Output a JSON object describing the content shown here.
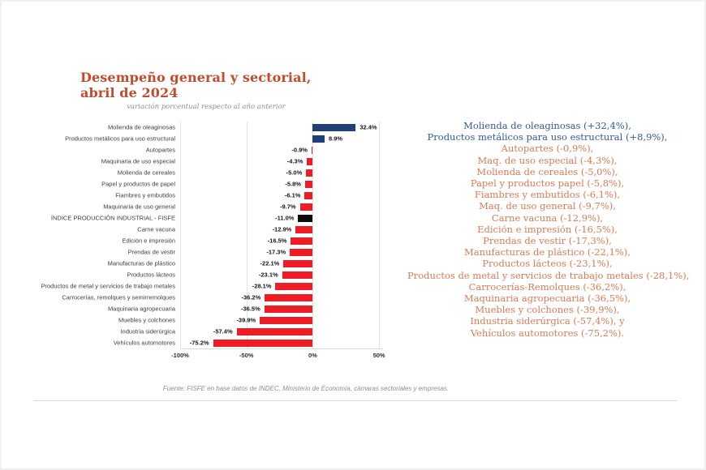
{
  "page": {
    "title": "Desempeño general y sectorial, abril de 2024",
    "subtitle": "variación porcentual respecto al año anterior",
    "source": "Fuente: FISFE en base datos de INDEC, Ministerio de Economía, cámaras sectoriales y empresas."
  },
  "chart_data": {
    "type": "bar",
    "orientation": "horizontal",
    "title": "Desempeño general y sectorial, abril de 2024",
    "subtitle": "variación porcentual respecto al año anterior",
    "categories": [
      "Molienda de oleaginosas",
      "Productos metálicos para uso estructural",
      "Autopartes",
      "Maquinaria de uso especial",
      "Molienda de cereales",
      "Papel y productos de papel",
      "Fiambres y embutidos",
      "Maquinaria de uso general",
      "ÍNDICE PRODUCCIÓN INDUSTRIAL - FISFE",
      "Carne vacuna",
      "Edición e impresión",
      "Prendas de vestir",
      "Manufacturas de plástico",
      "Productos lácteos",
      "Productos de metal y servicios de trabajo metales",
      "Carrocerías, remolques y semirremolques",
      "Maquinaria agropecuaria",
      "Muebles y colchones",
      "Industria siderúrgica",
      "Vehículos automotores"
    ],
    "values": [
      32.4,
      8.9,
      -0.9,
      -4.3,
      -5.0,
      -5.8,
      -6.1,
      -9.7,
      -11.0,
      -12.9,
      -16.5,
      -17.3,
      -22.1,
      -23.1,
      -28.1,
      -36.2,
      -36.5,
      -39.9,
      -57.4,
      -75.2
    ],
    "value_labels": [
      "32.4%",
      "8.9%",
      "-0.9%",
      "-4.3%",
      "-5.0%",
      "-5.8%",
      "-6.1%",
      "-9.7%",
      "-11.0%",
      "-12.9%",
      "-16.5%",
      "-17.3%",
      "-22.1%",
      "-23.1%",
      "-28.1%",
      "-36.2%",
      "-36.5%",
      "-39.9%",
      "-57.4%",
      "-75.2%"
    ],
    "highlight_index": 8,
    "x_ticks": [
      "-100%",
      "-50%",
      "0%",
      "50%"
    ],
    "x_tick_values": [
      -100,
      -50,
      0,
      50
    ],
    "xlim": [
      -100,
      53
    ],
    "grid": true,
    "legend": "none",
    "colors": {
      "positive": "#1f4077",
      "negative": "#ee1c25",
      "index": "#0b0b0b"
    }
  },
  "summary": {
    "colors": {
      "blue": "#33589c",
      "orange": "#d97a55"
    },
    "lines": [
      {
        "text": "Molienda de oleaginosas (+32,4%),",
        "tone": "blue"
      },
      {
        "text": "Productos metálicos para uso estructural (+8,9%),",
        "tone": "blue"
      },
      {
        "text": "Autopartes (-0,9%),",
        "tone": "orange"
      },
      {
        "text": "Maq. de uso especial (-4,3%),",
        "tone": "orange"
      },
      {
        "text": "Molienda de cereales (-5,0%),",
        "tone": "orange"
      },
      {
        "text": "Papel y productos papel (-5,8%),",
        "tone": "orange"
      },
      {
        "text": "Fiambres y embutidos (-6,1%),",
        "tone": "orange"
      },
      {
        "text": "Maq. de uso general (-9,7%),",
        "tone": "orange"
      },
      {
        "text": "Carne vacuna (-12,9%),",
        "tone": "orange"
      },
      {
        "text": "Edición e impresión (-16,5%),",
        "tone": "orange"
      },
      {
        "text": "Prendas de vestir (-17,3%),",
        "tone": "orange"
      },
      {
        "text": "Manufacturas de plástico (-22,1%),",
        "tone": "orange"
      },
      {
        "text": "Productos lácteos (-23,1%),",
        "tone": "orange"
      },
      {
        "text": "Productos de metal y servicios de trabajo metales (-28,1%),",
        "tone": "orange"
      },
      {
        "text": "Carrocerías-Remolques (-36,2%),",
        "tone": "orange"
      },
      {
        "text": "Maquinaria agropecuaria (-36,5%),",
        "tone": "orange"
      },
      {
        "text": "Muebles y colchones (-39,9%),",
        "tone": "orange"
      },
      {
        "text": "Industria siderúrgica (-57,4%), y",
        "tone": "orange"
      },
      {
        "text": "Vehículos automotores (-75,2%).",
        "tone": "orange"
      }
    ]
  }
}
